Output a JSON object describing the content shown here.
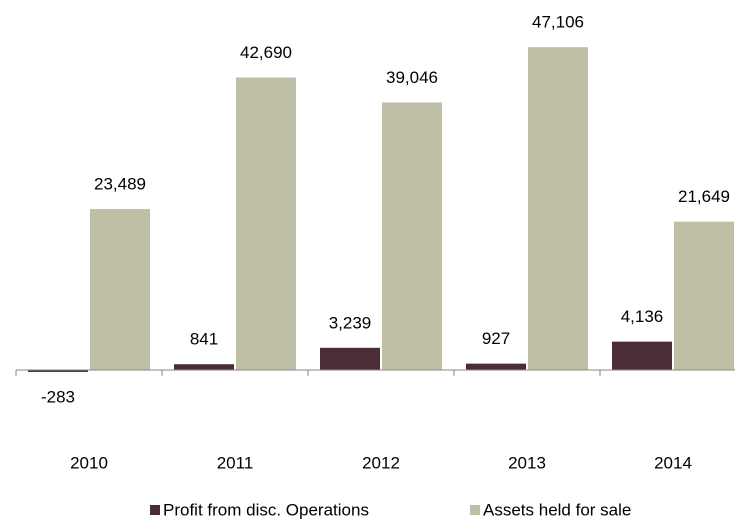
{
  "chart_data": {
    "type": "bar",
    "categories": [
      "2010",
      "2011",
      "2012",
      "2013",
      "2014"
    ],
    "series": [
      {
        "name": "Profit from disc. Operations",
        "color": "#4b2d35",
        "values": [
          -283,
          841,
          3239,
          927,
          4136
        ],
        "value_labels": [
          "-283",
          "841",
          "3,239",
          "927",
          "4,136"
        ]
      },
      {
        "name": "Assets held for sale",
        "color": "#bebfa4",
        "values": [
          23489,
          42690,
          39046,
          47106,
          21649
        ],
        "value_labels": [
          "23,489",
          "42,690",
          "39,046",
          "47,106",
          "21,649"
        ]
      }
    ],
    "ylim": [
      -2000,
      54000
    ],
    "legend": "bottom"
  }
}
